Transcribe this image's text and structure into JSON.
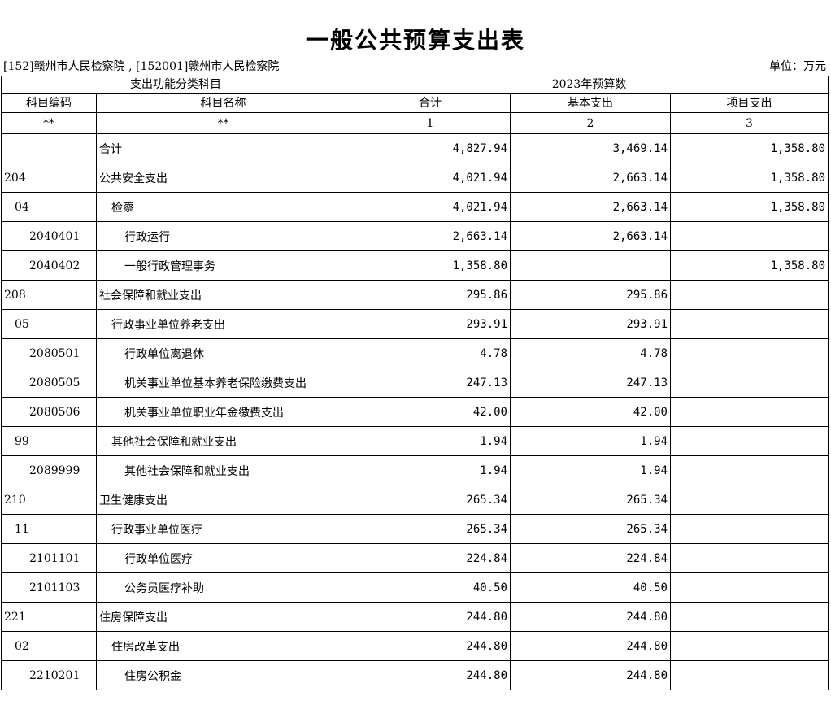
{
  "title": "一般公共预算支出表",
  "org": "[152]赣州市人民检察院 , [152001]赣州市人民检察院",
  "unit": "单位：万元",
  "header": {
    "group_left": "支出功能分类科目",
    "group_right": "2023年预算数",
    "col_code": "科目编码",
    "col_name": "科目名称",
    "col_total": "合计",
    "col_basic": "基本支出",
    "col_project": "项目支出",
    "idx_code": "**",
    "idx_name": "**",
    "idx_total": "1",
    "idx_basic": "2",
    "idx_project": "3"
  },
  "rows": [
    {
      "code": "",
      "name": "合计",
      "total": "4,827.94",
      "basic": "3,469.14",
      "project": "1,358.80",
      "level": 1
    },
    {
      "code": "204",
      "name": "公共安全支出",
      "total": "4,021.94",
      "basic": "2,663.14",
      "project": "1,358.80",
      "level": 1
    },
    {
      "code": "04",
      "name": "检察",
      "total": "4,021.94",
      "basic": "2,663.14",
      "project": "1,358.80",
      "level": 2
    },
    {
      "code": "2040401",
      "name": "行政运行",
      "total": "2,663.14",
      "basic": "2,663.14",
      "project": "",
      "level": 3
    },
    {
      "code": "2040402",
      "name": "一般行政管理事务",
      "total": "1,358.80",
      "basic": "",
      "project": "1,358.80",
      "level": 3
    },
    {
      "code": "208",
      "name": "社会保障和就业支出",
      "total": "295.86",
      "basic": "295.86",
      "project": "",
      "level": 1
    },
    {
      "code": "05",
      "name": "行政事业单位养老支出",
      "total": "293.91",
      "basic": "293.91",
      "project": "",
      "level": 2
    },
    {
      "code": "2080501",
      "name": "行政单位离退休",
      "total": "4.78",
      "basic": "4.78",
      "project": "",
      "level": 3
    },
    {
      "code": "2080505",
      "name": "机关事业单位基本养老保险缴费支出",
      "total": "247.13",
      "basic": "247.13",
      "project": "",
      "level": 3
    },
    {
      "code": "2080506",
      "name": "机关事业单位职业年金缴费支出",
      "total": "42.00",
      "basic": "42.00",
      "project": "",
      "level": 3
    },
    {
      "code": "99",
      "name": "其他社会保障和就业支出",
      "total": "1.94",
      "basic": "1.94",
      "project": "",
      "level": 2
    },
    {
      "code": "2089999",
      "name": "其他社会保障和就业支出",
      "total": "1.94",
      "basic": "1.94",
      "project": "",
      "level": 3
    },
    {
      "code": "210",
      "name": "卫生健康支出",
      "total": "265.34",
      "basic": "265.34",
      "project": "",
      "level": 1
    },
    {
      "code": "11",
      "name": "行政事业单位医疗",
      "total": "265.34",
      "basic": "265.34",
      "project": "",
      "level": 2
    },
    {
      "code": "2101101",
      "name": "行政单位医疗",
      "total": "224.84",
      "basic": "224.84",
      "project": "",
      "level": 3
    },
    {
      "code": "2101103",
      "name": "公务员医疗补助",
      "total": "40.50",
      "basic": "40.50",
      "project": "",
      "level": 3
    },
    {
      "code": "221",
      "name": "住房保障支出",
      "total": "244.80",
      "basic": "244.80",
      "project": "",
      "level": 1
    },
    {
      "code": "02",
      "name": "住房改革支出",
      "total": "244.80",
      "basic": "244.80",
      "project": "",
      "level": 2
    },
    {
      "code": "2210201",
      "name": "住房公积金",
      "total": "244.80",
      "basic": "244.80",
      "project": "",
      "level": 3
    }
  ]
}
